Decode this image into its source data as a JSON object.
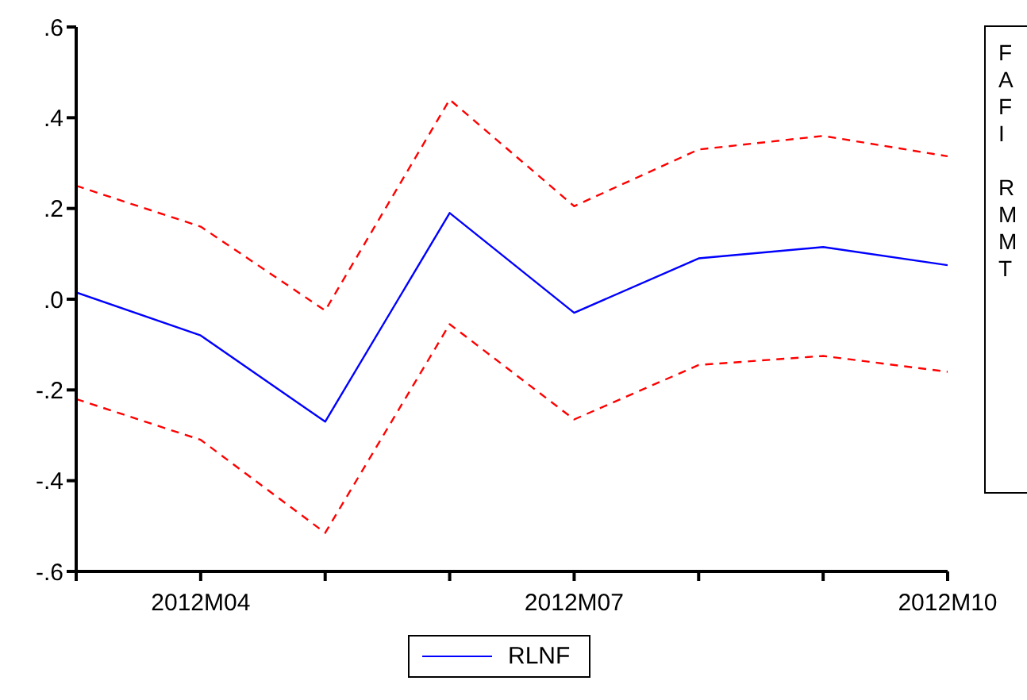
{
  "chart_data": {
    "type": "line",
    "categories": [
      null,
      "2012M04",
      null,
      null,
      "2012M07",
      null,
      null,
      "2012M10"
    ],
    "series": [
      {
        "name": "RLNF",
        "color": "#0000ff",
        "line_style": "solid",
        "values": [
          0.015,
          -0.08,
          -0.27,
          0.19,
          -0.03,
          0.09,
          0.115,
          0.075
        ]
      },
      {
        "color": "#ff0000",
        "line_style": "dashed",
        "values": [
          0.25,
          0.16,
          -0.025,
          0.44,
          0.205,
          0.33,
          0.36,
          0.315
        ]
      },
      {
        "color": "#ff0000",
        "line_style": "dashed",
        "values": [
          -0.22,
          -0.31,
          -0.515,
          -0.055,
          -0.265,
          -0.145,
          -0.125,
          -0.16
        ]
      }
    ],
    "ylim": [
      -0.6,
      0.6
    ],
    "yticks": [
      {
        "value": -0.6,
        "label": "-.6"
      },
      {
        "value": -0.4,
        "label": "-.4"
      },
      {
        "value": -0.2,
        "label": "-.2"
      },
      {
        "value": 0,
        "label": ".0"
      },
      {
        "value": 0.2,
        "label": ".2"
      },
      {
        "value": 0.4,
        "label": ".4"
      },
      {
        "value": 0.6,
        "label": ".6"
      }
    ],
    "grid": false,
    "legend": "bottom",
    "marker": "none",
    "annotations": [
      "F",
      "A",
      "F",
      "I",
      "R",
      "M",
      "M",
      "T"
    ]
  }
}
